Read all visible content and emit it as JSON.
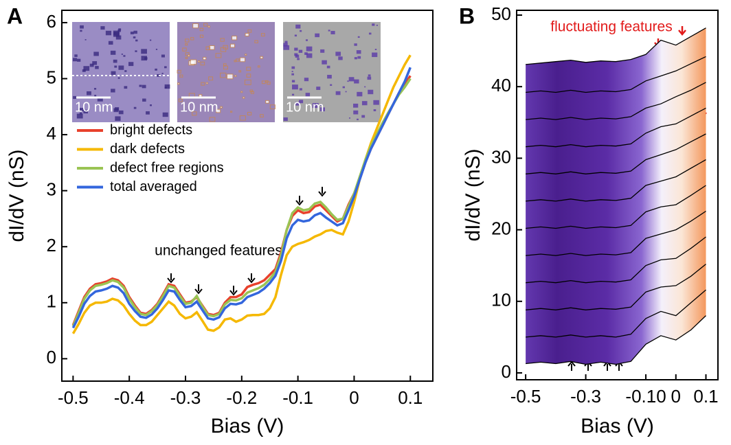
{
  "chart_data": [
    {
      "type": "line",
      "panel_label": "A",
      "xlabel": "Bias (V)",
      "ylabel": "dI/dV (nS)",
      "xlim": [
        -0.52,
        0.14
      ],
      "ylim": [
        -0.4,
        6.22
      ],
      "xticks": [
        -0.5,
        -0.4,
        -0.3,
        -0.2,
        -0.1,
        0,
        0.1
      ],
      "yticks": [
        0,
        1,
        2,
        3,
        4,
        5,
        6
      ],
      "legend": "upper left",
      "annotation": "unchanged features",
      "inset_labels": [
        "10 nm",
        "10 nm",
        "10 nm"
      ],
      "x": [
        -0.5,
        -0.49,
        -0.48,
        -0.47,
        -0.46,
        -0.45,
        -0.44,
        -0.43,
        -0.42,
        -0.41,
        -0.4,
        -0.39,
        -0.38,
        -0.37,
        -0.36,
        -0.35,
        -0.34,
        -0.33,
        -0.32,
        -0.31,
        -0.3,
        -0.29,
        -0.28,
        -0.27,
        -0.26,
        -0.25,
        -0.24,
        -0.23,
        -0.22,
        -0.21,
        -0.2,
        -0.19,
        -0.18,
        -0.17,
        -0.16,
        -0.15,
        -0.14,
        -0.13,
        -0.12,
        -0.11,
        -0.1,
        -0.09,
        -0.08,
        -0.07,
        -0.06,
        -0.05,
        -0.04,
        -0.03,
        -0.02,
        -0.01,
        0,
        0.01,
        0.02,
        0.03,
        0.04,
        0.05,
        0.06,
        0.07,
        0.08,
        0.09,
        0.1
      ],
      "series": [
        {
          "name": "bright defects",
          "color": "#e8412c",
          "values": [
            0.6,
            0.85,
            1.1,
            1.25,
            1.33,
            1.35,
            1.38,
            1.43,
            1.4,
            1.3,
            1.1,
            0.95,
            0.82,
            0.8,
            0.87,
            0.98,
            1.15,
            1.33,
            1.3,
            1.15,
            1.0,
            1.02,
            1.1,
            0.95,
            0.8,
            0.78,
            0.82,
            1.0,
            1.1,
            1.1,
            1.15,
            1.28,
            1.32,
            1.35,
            1.4,
            1.5,
            1.6,
            1.9,
            2.3,
            2.55,
            2.65,
            2.6,
            2.62,
            2.72,
            2.75,
            2.65,
            2.55,
            2.45,
            2.5,
            2.75,
            2.95,
            3.2,
            3.5,
            3.75,
            3.95,
            4.15,
            4.35,
            4.55,
            4.75,
            4.9,
            5.05
          ]
        },
        {
          "name": "dark defects",
          "color": "#f5b800",
          "values": [
            0.45,
            0.62,
            0.82,
            0.95,
            1.0,
            1.0,
            1.02,
            1.07,
            1.04,
            0.95,
            0.8,
            0.68,
            0.6,
            0.6,
            0.66,
            0.78,
            0.9,
            1.02,
            0.95,
            0.8,
            0.72,
            0.75,
            0.83,
            0.68,
            0.52,
            0.5,
            0.56,
            0.7,
            0.72,
            0.66,
            0.7,
            0.77,
            0.78,
            0.78,
            0.8,
            0.9,
            1.1,
            1.5,
            1.85,
            2.0,
            2.05,
            2.08,
            2.12,
            2.18,
            2.22,
            2.28,
            2.3,
            2.25,
            2.22,
            2.45,
            2.8,
            3.2,
            3.55,
            3.85,
            4.1,
            4.35,
            4.6,
            4.85,
            5.05,
            5.25,
            5.42
          ]
        },
        {
          "name": "defect free regions",
          "color": "#9ac454",
          "values": [
            0.58,
            0.82,
            1.07,
            1.22,
            1.3,
            1.32,
            1.35,
            1.4,
            1.37,
            1.27,
            1.07,
            0.92,
            0.8,
            0.78,
            0.85,
            0.96,
            1.12,
            1.3,
            1.27,
            1.12,
            0.98,
            1.0,
            1.12,
            0.93,
            0.78,
            0.76,
            0.8,
            0.97,
            1.05,
            1.04,
            1.08,
            1.18,
            1.22,
            1.26,
            1.32,
            1.42,
            1.55,
            1.85,
            2.3,
            2.6,
            2.7,
            2.65,
            2.67,
            2.77,
            2.8,
            2.7,
            2.58,
            2.48,
            2.5,
            2.72,
            2.95,
            3.25,
            3.55,
            3.8,
            4.0,
            4.2,
            4.38,
            4.55,
            4.72,
            4.85,
            5.0
          ]
        },
        {
          "name": "total averaged",
          "color": "#3366dd",
          "values": [
            0.55,
            0.75,
            0.98,
            1.12,
            1.2,
            1.22,
            1.25,
            1.3,
            1.27,
            1.17,
            0.98,
            0.85,
            0.75,
            0.73,
            0.79,
            0.9,
            1.05,
            1.22,
            1.2,
            1.05,
            0.92,
            0.94,
            1.02,
            0.87,
            0.72,
            0.7,
            0.74,
            0.9,
            0.98,
            0.97,
            1.0,
            1.1,
            1.14,
            1.18,
            1.25,
            1.35,
            1.48,
            1.75,
            2.15,
            2.38,
            2.48,
            2.45,
            2.47,
            2.56,
            2.6,
            2.52,
            2.45,
            2.38,
            2.42,
            2.65,
            2.9,
            3.2,
            3.5,
            3.75,
            3.95,
            4.15,
            4.35,
            4.55,
            4.75,
            4.95,
            5.2
          ]
        }
      ]
    },
    {
      "type": "waterfall",
      "panel_label": "B",
      "xlabel": "Bias (V)",
      "ylabel": "dI/dV (nS)",
      "xlim": [
        -0.53,
        0.14
      ],
      "ylim": [
        -0.96,
        50.67
      ],
      "xticks": [
        -0.5,
        -0.3,
        {
          "value": -0.1,
          "label": "-0.10"
        },
        0,
        0.1
      ],
      "yticks": [
        0,
        10,
        20,
        30,
        40,
        50
      ],
      "annotation": "fluctuating features",
      "color": "#000000",
      "x": [
        -0.5,
        -0.45,
        -0.4,
        -0.35,
        -0.3,
        -0.25,
        -0.2,
        -0.15,
        -0.1,
        -0.05,
        0,
        0.05,
        0.1
      ],
      "series": [
        {
          "values": [
            1.3,
            1.5,
            1.3,
            1.6,
            1.2,
            1.5,
            1.2,
            1.6,
            4.0,
            5.2,
            4.6,
            6.0,
            8.0
          ]
        },
        {
          "values": [
            5.0,
            5.2,
            5.0,
            5.3,
            5.0,
            5.2,
            5.0,
            5.4,
            7.6,
            8.6,
            8.0,
            9.8,
            11.6
          ]
        },
        {
          "values": [
            8.8,
            9.0,
            8.8,
            9.1,
            8.8,
            9.0,
            8.9,
            9.2,
            11.3,
            12.0,
            12.2,
            13.5,
            15.2
          ]
        },
        {
          "values": [
            12.6,
            12.8,
            12.6,
            12.9,
            12.6,
            12.8,
            12.7,
            13.0,
            15.0,
            15.8,
            16.0,
            17.4,
            19.0
          ]
        },
        {
          "values": [
            16.4,
            16.6,
            16.4,
            16.7,
            16.4,
            16.6,
            16.5,
            16.8,
            18.8,
            19.4,
            20.0,
            21.2,
            22.6
          ]
        },
        {
          "values": [
            20.2,
            20.4,
            20.2,
            20.5,
            20.2,
            20.4,
            20.3,
            20.6,
            22.5,
            23.2,
            23.5,
            24.8,
            26.2
          ]
        },
        {
          "values": [
            24.0,
            24.2,
            24.0,
            24.3,
            24.0,
            24.2,
            24.1,
            24.4,
            26.2,
            26.8,
            27.4,
            28.6,
            29.8
          ]
        },
        {
          "values": [
            27.8,
            28.0,
            27.8,
            28.1,
            27.8,
            28.0,
            27.9,
            28.2,
            29.8,
            30.5,
            31.2,
            32.3,
            33.4
          ]
        },
        {
          "values": [
            31.6,
            31.8,
            31.6,
            31.9,
            31.6,
            31.8,
            31.7,
            32.0,
            33.5,
            34.4,
            34.8,
            35.9,
            37.0
          ]
        },
        {
          "values": [
            35.4,
            35.6,
            35.4,
            35.7,
            35.4,
            35.6,
            35.5,
            35.8,
            37.0,
            37.6,
            38.6,
            39.5,
            40.6
          ]
        },
        {
          "values": [
            39.2,
            39.4,
            39.2,
            39.5,
            39.2,
            39.4,
            39.3,
            39.6,
            40.8,
            41.5,
            42.2,
            43.2,
            44.2
          ]
        },
        {
          "values": [
            43.1,
            43.3,
            43.5,
            43.7,
            43.4,
            43.6,
            43.5,
            43.8,
            44.5,
            46.5,
            45.8,
            47.0,
            48.2
          ]
        }
      ]
    }
  ]
}
